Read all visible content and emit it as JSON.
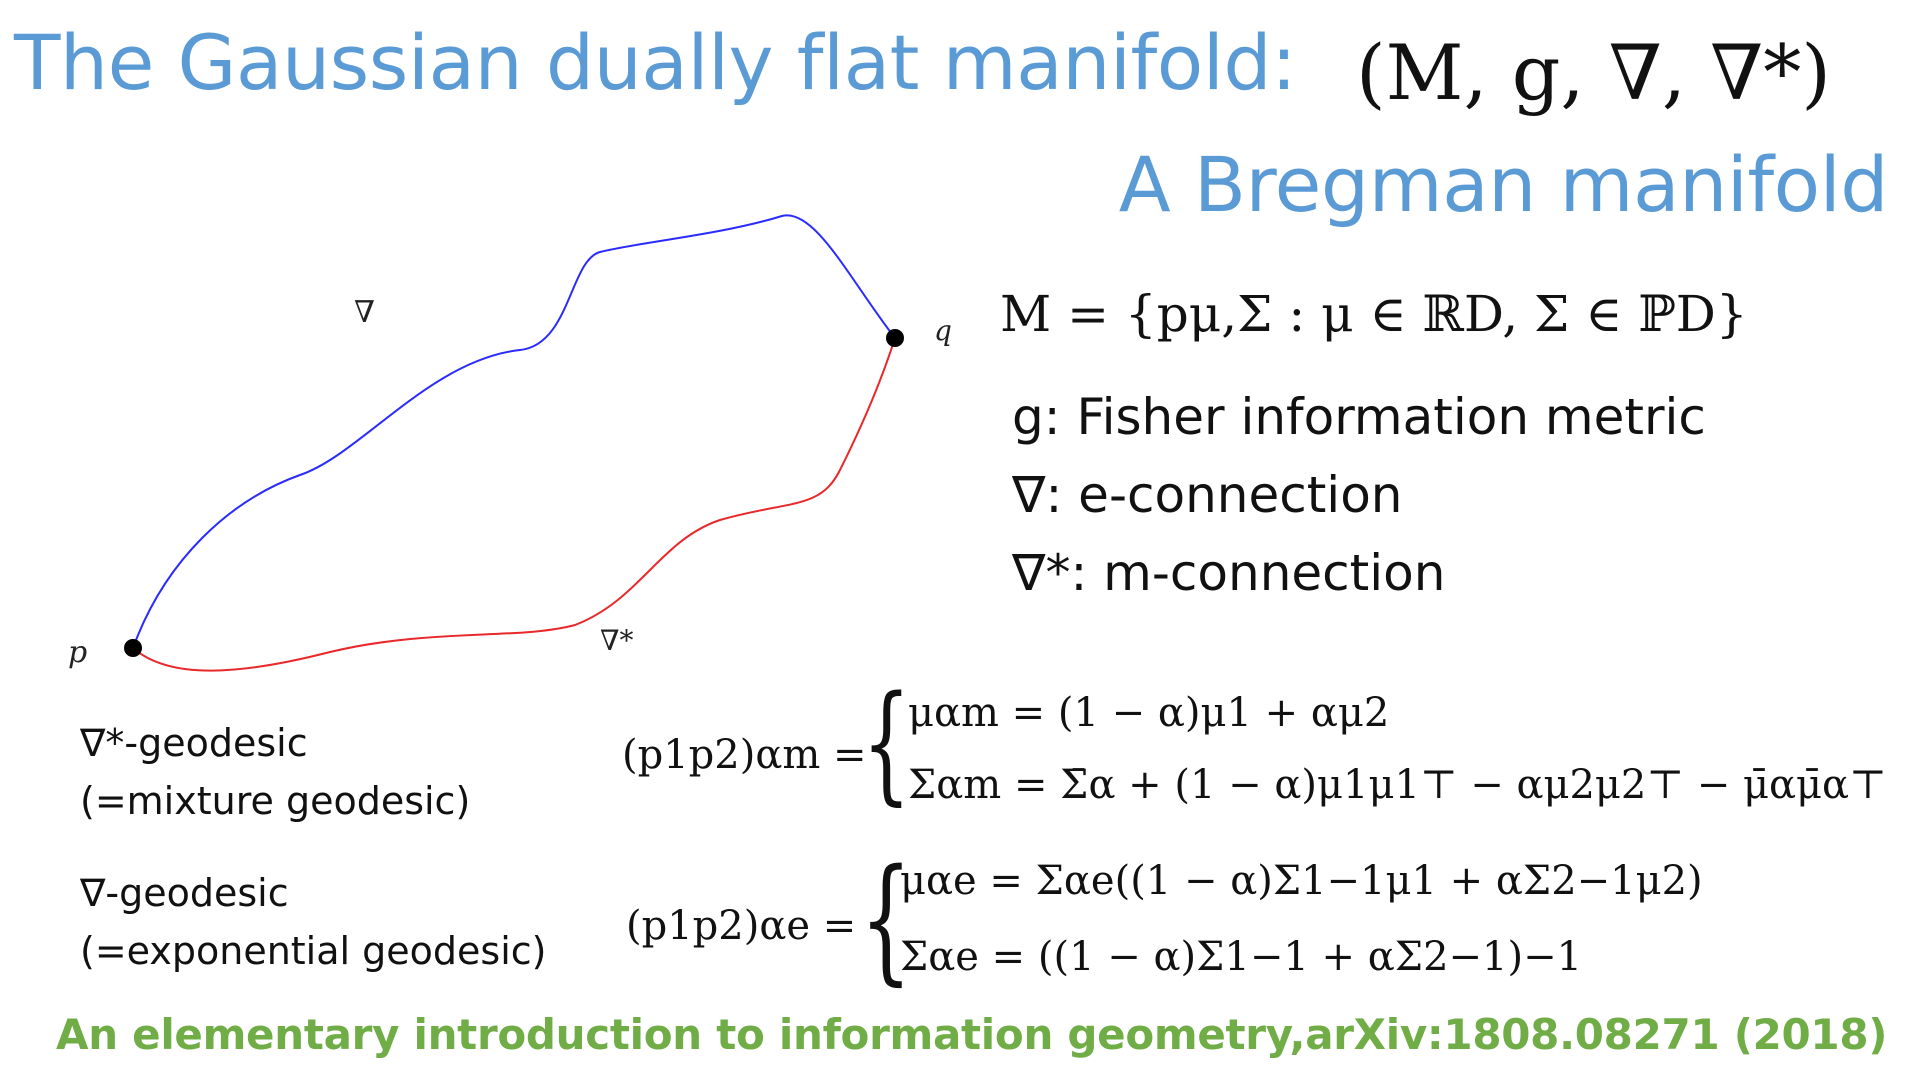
{
  "slide": {
    "title": "The Gaussian dually flat manifold:",
    "title_math": "(M, g, ∇, ∇*)",
    "subtitle": "A Bregman manifold",
    "colors": {
      "heading": "#5b9bd5",
      "citation": "#70ad47",
      "e_geodesic_curve": "#2b2bff",
      "m_geodesic_curve": "#e8282a",
      "points": "#000000"
    }
  },
  "diagram": {
    "label_nabla": "∇",
    "label_nabla_star": "∇*",
    "label_p": "p",
    "label_q": "q"
  },
  "definition": {
    "manifold": "M = {pμ,Σ : μ ∈ ℝD, Σ ∈ ℙD}",
    "items": [
      "g: Fisher information metric",
      "∇: e-connection",
      "∇*: m-connection"
    ]
  },
  "geodesics": {
    "mixture": {
      "label_line1": "∇*-geodesic",
      "label_line2": "(=mixture geodesic)",
      "lhs": "(p1p2)αm =",
      "eq1": "μαm = (1 − α)μ1 + αμ2",
      "eq2": "Σαm = Σ̄α + (1 − α)μ1μ1⊤ − αμ2μ2⊤ − μ̄αμ̄α⊤"
    },
    "exponential": {
      "label_line1": "∇-geodesic",
      "label_line2": "(=exponential geodesic)",
      "lhs": "(p1p2)αe =",
      "eq1": "μαe = Σαe((1 − α)Σ1−1μ1 + αΣ2−1μ2)",
      "eq2": "Σαe = ((1 − α)Σ1−1 + αΣ2−1)−1"
    }
  },
  "citation": "An elementary introduction to information geometry,arXiv:1808.08271 (2018)"
}
